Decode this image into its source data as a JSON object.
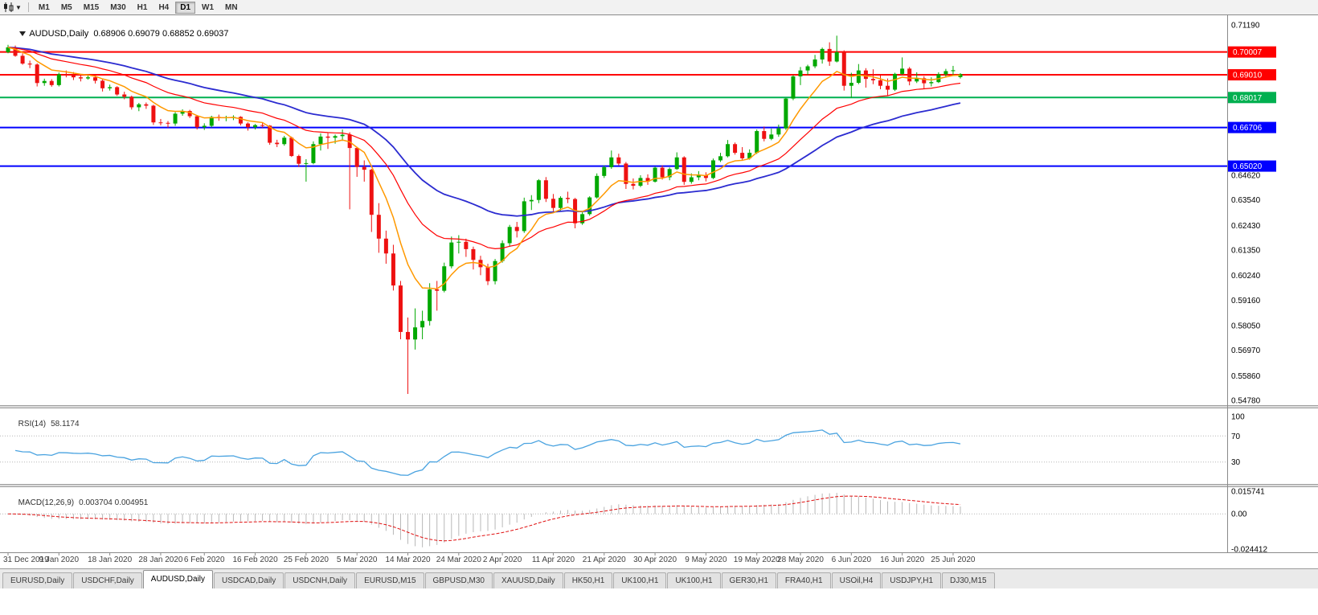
{
  "toolbar": {
    "timeframes": [
      "M1",
      "M5",
      "M15",
      "M30",
      "H1",
      "H4",
      "D1",
      "W1",
      "MN"
    ],
    "active_timeframe": "D1"
  },
  "chart": {
    "title": "AUDUSD,Daily",
    "ohlc_text": "0.68906 0.69079 0.68852 0.69037"
  },
  "rsi_panel": {
    "label": "RSI(14)",
    "value": "58.1174",
    "ticks": [
      "100",
      "70",
      "30"
    ],
    "levels": [
      70,
      30
    ]
  },
  "macd_panel": {
    "label": "MACD(12,26,9)",
    "values": "0.003704 0.004951",
    "ticks": [
      "0.015741",
      "0.00",
      "-0.024412"
    ]
  },
  "chart_data": {
    "type": "candlestick",
    "symbol": "AUDUSD",
    "timeframe": "Daily",
    "price_range": [
      0.5478,
      0.7119
    ],
    "up_color": "#00a800",
    "down_color": "#ee1111",
    "y_ticks": [
      "0.71190",
      "0.64620",
      "0.63540",
      "0.62430",
      "0.61350",
      "0.60240",
      "0.59160",
      "0.58050",
      "0.56970",
      "0.55860",
      "0.54780"
    ],
    "x_labels": [
      "31 Dec 2019",
      "9 Jan 2020",
      "18 Jan 2020",
      "28 Jan 2020",
      "6 Feb 2020",
      "16 Feb 2020",
      "25 Feb 2020",
      "5 Mar 2020",
      "14 Mar 2020",
      "24 Mar 2020",
      "2 Apr 2020",
      "11 Apr 2020",
      "21 Apr 2020",
      "30 Apr 2020",
      "9 May 2020",
      "19 May 2020",
      "28 May 2020",
      "6 Jun 2020",
      "16 Jun 2020",
      "25 Jun 2020"
    ],
    "hlines": [
      {
        "label": "0.70007",
        "value": 0.70007,
        "color": "#ff0000"
      },
      {
        "label": "0.69010",
        "value": 0.6901,
        "color": "#ff0000"
      },
      {
        "label": "0.68017",
        "value": 0.68017,
        "color": "#00b050"
      },
      {
        "label": "0.66706",
        "value": 0.66706,
        "color": "#0000ff"
      },
      {
        "label": "0.65020",
        "value": 0.6502,
        "color": "#0000ff"
      }
    ],
    "ma": [
      {
        "name": "slow",
        "period": 40,
        "color": "#2b2bd0",
        "width": 1.8
      },
      {
        "name": "mid",
        "period": 21,
        "color": "#ff0000",
        "width": 1.2
      },
      {
        "name": "fast",
        "period": 8,
        "color": "#ff9900",
        "width": 1.5
      }
    ],
    "rsi": {
      "period": 14,
      "color": "#4aa3e0"
    },
    "macd": {
      "fast": 12,
      "slow": 26,
      "signal": 9,
      "hist_color": "#b8b8b8",
      "signal_color": "#e01010",
      "range": [
        -0.024412,
        0.015741
      ]
    },
    "candles": [
      [
        0.7,
        0.7032,
        0.6995,
        0.7021
      ],
      [
        0.7021,
        0.7029,
        0.698,
        0.6984
      ],
      [
        0.6984,
        0.6995,
        0.6945,
        0.695
      ],
      [
        0.695,
        0.6963,
        0.693,
        0.6946
      ],
      [
        0.6946,
        0.6951,
        0.685,
        0.6865
      ],
      [
        0.6865,
        0.6884,
        0.6853,
        0.6874
      ],
      [
        0.6874,
        0.6882,
        0.6849,
        0.6856
      ],
      [
        0.6856,
        0.6911,
        0.685,
        0.6903
      ],
      [
        0.6903,
        0.692,
        0.689,
        0.69
      ],
      [
        0.69,
        0.6913,
        0.6878,
        0.689
      ],
      [
        0.689,
        0.69,
        0.6872,
        0.6885
      ],
      [
        0.6885,
        0.6903,
        0.688,
        0.689
      ],
      [
        0.689,
        0.6898,
        0.6863,
        0.6875
      ],
      [
        0.6875,
        0.688,
        0.6828,
        0.6842
      ],
      [
        0.6842,
        0.6858,
        0.6832,
        0.6847
      ],
      [
        0.6847,
        0.6851,
        0.6809,
        0.6815
      ],
      [
        0.6815,
        0.6827,
        0.6794,
        0.6805
      ],
      [
        0.6805,
        0.681,
        0.6749,
        0.6759
      ],
      [
        0.6759,
        0.6778,
        0.6742,
        0.6772
      ],
      [
        0.6772,
        0.678,
        0.6752,
        0.6766
      ],
      [
        0.6766,
        0.677,
        0.6682,
        0.6693
      ],
      [
        0.6693,
        0.6708,
        0.668,
        0.6691
      ],
      [
        0.6691,
        0.6699,
        0.667,
        0.6688
      ],
      [
        0.6688,
        0.6738,
        0.6678,
        0.6731
      ],
      [
        0.6731,
        0.675,
        0.6722,
        0.6743
      ],
      [
        0.6743,
        0.6748,
        0.6712,
        0.672
      ],
      [
        0.672,
        0.6725,
        0.6662,
        0.6672
      ],
      [
        0.6672,
        0.6689,
        0.666,
        0.6678
      ],
      [
        0.6678,
        0.6722,
        0.6671,
        0.6717
      ],
      [
        0.6717,
        0.6727,
        0.67,
        0.6713
      ],
      [
        0.6713,
        0.6722,
        0.6698,
        0.6715
      ],
      [
        0.6715,
        0.6724,
        0.6703,
        0.6717
      ],
      [
        0.6717,
        0.672,
        0.668,
        0.6688
      ],
      [
        0.6688,
        0.6693,
        0.6657,
        0.6672
      ],
      [
        0.6672,
        0.6686,
        0.6662,
        0.6681
      ],
      [
        0.6681,
        0.6692,
        0.667,
        0.6679
      ],
      [
        0.6679,
        0.6681,
        0.6595,
        0.6604
      ],
      [
        0.6604,
        0.6617,
        0.6585,
        0.6598
      ],
      [
        0.6598,
        0.6634,
        0.6591,
        0.6626
      ],
      [
        0.6626,
        0.6631,
        0.6542,
        0.6546
      ],
      [
        0.6546,
        0.6552,
        0.6498,
        0.6512
      ],
      [
        0.6512,
        0.6532,
        0.6434,
        0.6515
      ],
      [
        0.6515,
        0.661,
        0.651,
        0.6598
      ],
      [
        0.6598,
        0.6645,
        0.657,
        0.6631
      ],
      [
        0.6631,
        0.6646,
        0.6577,
        0.6626
      ],
      [
        0.6626,
        0.664,
        0.66,
        0.6633
      ],
      [
        0.6633,
        0.6662,
        0.6612,
        0.6639
      ],
      [
        0.6639,
        0.665,
        0.6313,
        0.6581
      ],
      [
        0.6581,
        0.6586,
        0.6455,
        0.6498
      ],
      [
        0.6498,
        0.6527,
        0.6434,
        0.6486
      ],
      [
        0.6486,
        0.649,
        0.6214,
        0.6289
      ],
      [
        0.6289,
        0.634,
        0.6123,
        0.6185
      ],
      [
        0.6185,
        0.622,
        0.6075,
        0.612
      ],
      [
        0.612,
        0.6158,
        0.5958,
        0.598
      ],
      [
        0.598,
        0.6,
        0.5745,
        0.5777
      ],
      [
        0.5777,
        0.584,
        0.5506,
        0.5744
      ],
      [
        0.5744,
        0.588,
        0.57,
        0.5797
      ],
      [
        0.5797,
        0.587,
        0.5745,
        0.5825
      ],
      [
        0.5825,
        0.599,
        0.5805,
        0.5963
      ],
      [
        0.5963,
        0.6,
        0.587,
        0.5957
      ],
      [
        0.5957,
        0.608,
        0.595,
        0.6064
      ],
      [
        0.6064,
        0.6194,
        0.6055,
        0.6168
      ],
      [
        0.6168,
        0.62,
        0.612,
        0.6171
      ],
      [
        0.6171,
        0.6185,
        0.6105,
        0.6139
      ],
      [
        0.6139,
        0.615,
        0.605,
        0.6092
      ],
      [
        0.6092,
        0.611,
        0.6025,
        0.606
      ],
      [
        0.606,
        0.6075,
        0.5982,
        0.5999
      ],
      [
        0.5999,
        0.6096,
        0.5985,
        0.6087
      ],
      [
        0.6087,
        0.6177,
        0.608,
        0.6165
      ],
      [
        0.6165,
        0.6245,
        0.615,
        0.6236
      ],
      [
        0.6236,
        0.6258,
        0.619,
        0.6218
      ],
      [
        0.6218,
        0.6364,
        0.621,
        0.6348
      ],
      [
        0.6348,
        0.6375,
        0.631,
        0.6354
      ],
      [
        0.6354,
        0.6445,
        0.634,
        0.644
      ],
      [
        0.644,
        0.6454,
        0.6345,
        0.6359
      ],
      [
        0.6359,
        0.638,
        0.63,
        0.6319
      ],
      [
        0.6319,
        0.637,
        0.6304,
        0.6363
      ],
      [
        0.6363,
        0.639,
        0.634,
        0.6358
      ],
      [
        0.6358,
        0.6363,
        0.623,
        0.6252
      ],
      [
        0.6252,
        0.63,
        0.6245,
        0.6292
      ],
      [
        0.6292,
        0.637,
        0.6285,
        0.6365
      ],
      [
        0.6365,
        0.647,
        0.636,
        0.6459
      ],
      [
        0.6459,
        0.6505,
        0.645,
        0.6497
      ],
      [
        0.6497,
        0.657,
        0.649,
        0.654
      ],
      [
        0.654,
        0.6556,
        0.6505,
        0.6513
      ],
      [
        0.6513,
        0.652,
        0.6402,
        0.6424
      ],
      [
        0.6424,
        0.6448,
        0.64,
        0.6416
      ],
      [
        0.6416,
        0.6462,
        0.641,
        0.645
      ],
      [
        0.645,
        0.6466,
        0.642,
        0.6434
      ],
      [
        0.6434,
        0.65,
        0.643,
        0.6495
      ],
      [
        0.6495,
        0.6505,
        0.6443,
        0.6453
      ],
      [
        0.6453,
        0.6496,
        0.644,
        0.6489
      ],
      [
        0.6489,
        0.6562,
        0.6485,
        0.654
      ],
      [
        0.654,
        0.6545,
        0.642,
        0.6433
      ],
      [
        0.6433,
        0.647,
        0.6425,
        0.6453
      ],
      [
        0.6453,
        0.648,
        0.644,
        0.6462
      ],
      [
        0.6462,
        0.6475,
        0.6435,
        0.645
      ],
      [
        0.645,
        0.6535,
        0.6445,
        0.6527
      ],
      [
        0.6527,
        0.656,
        0.652,
        0.6545
      ],
      [
        0.6545,
        0.6616,
        0.654,
        0.6598
      ],
      [
        0.6598,
        0.6605,
        0.6552,
        0.656
      ],
      [
        0.656,
        0.6585,
        0.6525,
        0.6536
      ],
      [
        0.6536,
        0.6575,
        0.653,
        0.656
      ],
      [
        0.656,
        0.6662,
        0.6555,
        0.6655
      ],
      [
        0.6655,
        0.6675,
        0.661,
        0.6621
      ],
      [
        0.6621,
        0.6666,
        0.6615,
        0.664
      ],
      [
        0.664,
        0.6683,
        0.663,
        0.6667
      ],
      [
        0.6667,
        0.68,
        0.666,
        0.6797
      ],
      [
        0.6797,
        0.69,
        0.679,
        0.6894
      ],
      [
        0.6894,
        0.6935,
        0.6856,
        0.692
      ],
      [
        0.692,
        0.6945,
        0.69,
        0.6938
      ],
      [
        0.6938,
        0.6988,
        0.693,
        0.6968
      ],
      [
        0.6968,
        0.702,
        0.695,
        0.7014
      ],
      [
        0.7014,
        0.7043,
        0.694,
        0.6959
      ],
      [
        0.6959,
        0.7072,
        0.6955,
        0.7
      ],
      [
        0.7,
        0.7008,
        0.6832,
        0.6853
      ],
      [
        0.6853,
        0.691,
        0.68,
        0.6866
      ],
      [
        0.6866,
        0.6948,
        0.686,
        0.692
      ],
      [
        0.692,
        0.693,
        0.6845,
        0.6883
      ],
      [
        0.6883,
        0.6925,
        0.686,
        0.6877
      ],
      [
        0.6877,
        0.69,
        0.6838,
        0.6853
      ],
      [
        0.6853,
        0.6885,
        0.681,
        0.6836
      ],
      [
        0.6836,
        0.691,
        0.683,
        0.6905
      ],
      [
        0.6905,
        0.6977,
        0.69,
        0.6928
      ],
      [
        0.6928,
        0.6935,
        0.6855,
        0.6872
      ],
      [
        0.6872,
        0.6912,
        0.6865,
        0.6886
      ],
      [
        0.6886,
        0.6895,
        0.684,
        0.6864
      ],
      [
        0.6864,
        0.689,
        0.685,
        0.6869
      ],
      [
        0.6869,
        0.6912,
        0.6865,
        0.6903
      ],
      [
        0.6903,
        0.6927,
        0.689,
        0.6917
      ],
      [
        0.6917,
        0.694,
        0.69,
        0.6921
      ],
      [
        0.6891,
        0.6908,
        0.6885,
        0.6904
      ]
    ]
  },
  "tabs": {
    "active_index": 2,
    "items": [
      "EURUSD,Daily",
      "USDCHF,Daily",
      "AUDUSD,Daily",
      "USDCAD,Daily",
      "USDCNH,Daily",
      "EURUSD,M15",
      "GBPUSD,M30",
      "XAUUSD,Daily",
      "HK50,H1",
      "UK100,H1",
      "UK100,H1",
      "GER30,H1",
      "FRA40,H1",
      "USOil,H4",
      "USDJPY,H1",
      "DJ30,M15"
    ]
  }
}
